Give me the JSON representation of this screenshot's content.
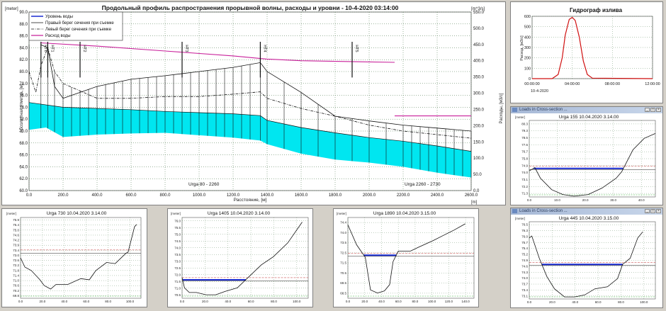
{
  "main": {
    "title": "Продольный профиль распространения прорывной волны, расходы и уровни  - 10-4-2020 03:14:00",
    "y_left_unit": "[meter]",
    "y_right_unit": "[m^3/s]",
    "y_left_label": "Абсолютная отметка, [м]",
    "y_right_label": "Расходы, [м3/с]",
    "x_label": "Расстояние, [м]",
    "x_unit": "[m]",
    "legend": [
      "Уровень воды",
      "Правый берег сечения при съемке",
      "Левый берег сечения при съемке",
      "Расход воды"
    ],
    "section_labels": [
      "Urga  80 - 2260",
      "Urga  2260 - 2730"
    ],
    "station_labels": [
      "HTL",
      "HT1",
      "HT2",
      "HT3",
      "HT4",
      "HT5"
    ]
  },
  "hydrograph": {
    "title": "Гидрограф излива",
    "ylabel": "Расход, [м3/с]",
    "date": "10-4-2020"
  },
  "sections": {
    "s155": {
      "window_title": "Loads in Cross-section ...",
      "title": "Urga 155  10.04.2020 3.14.00"
    },
    "s730": {
      "title": "Urga 730  10.04.2020 3.14.00"
    },
    "s1405": {
      "title": "Urga 1405  10.04.2020 3.14.00"
    },
    "s1890": {
      "title": "Urga 1890  10.04.2020 3.15.00"
    },
    "s445": {
      "window_title": "Loads in Cross-section ...",
      "title": "Urga 445  10.04.2020 3.15.00"
    },
    "meter_unit": "[meter]"
  },
  "colors": {
    "water": "#00e6f0",
    "level": "#1a2bd0",
    "flow": "#c8209a",
    "hydro": "#d01010"
  },
  "chart_data": [
    {
      "type": "line",
      "name": "longitudinal-profile",
      "xlim": [
        0,
        2600
      ],
      "ylim": [
        60,
        90
      ],
      "y2lim": [
        0,
        550
      ],
      "x_ticks": [
        0,
        200,
        400,
        600,
        800,
        1000,
        1200,
        1400,
        1600,
        1800,
        2000,
        2200,
        2400,
        2600
      ],
      "x_tick_labels": [
        "0.0",
        "200.0",
        "400.0",
        "600.0",
        "800.0",
        "1000.0",
        "1200.0",
        "1400.0",
        "1600.0",
        "1800.0",
        "2000.0",
        "2200.0",
        "2400.0",
        "2600.0"
      ],
      "y_ticks": [
        60,
        62,
        64,
        66,
        68,
        70,
        72,
        74,
        76,
        78,
        80,
        82,
        84,
        86,
        88,
        90
      ],
      "y_tick_labels": [
        "60.0",
        "62.0",
        "64.0",
        "66.0",
        "68.0",
        "70.0",
        "72.0",
        "74.0",
        "76.0",
        "78.0",
        "80.0",
        "82.0",
        "84.0",
        "86.0",
        "88.0",
        "90.0"
      ],
      "y2_ticks": [
        0,
        50,
        100,
        150,
        200,
        250,
        300,
        350,
        400,
        450,
        500,
        550
      ],
      "y2_tick_labels": [
        "0.0",
        "50.0",
        "100.0",
        "150.0",
        "200.0",
        "250.0",
        "300.0",
        "350.0",
        "400.0",
        "450.0",
        "500.0",
        "550.0"
      ],
      "water_top": [
        [
          0,
          74.8
        ],
        [
          200,
          74.0
        ],
        [
          400,
          73.8
        ],
        [
          600,
          73.6
        ],
        [
          800,
          73.3
        ],
        [
          1000,
          73.1
        ],
        [
          1200,
          72.9
        ],
        [
          1360,
          72.6
        ],
        [
          1400,
          71.8
        ],
        [
          1600,
          70.6
        ],
        [
          1800,
          69.7
        ],
        [
          2000,
          68.9
        ],
        [
          2200,
          68.3
        ],
        [
          2400,
          67.5
        ],
        [
          2600,
          66.6
        ]
      ],
      "bed": [
        [
          0,
          70.2
        ],
        [
          100,
          70.6
        ],
        [
          200,
          69.0
        ],
        [
          400,
          69.4
        ],
        [
          600,
          69.6
        ],
        [
          800,
          69.7
        ],
        [
          1000,
          69.3
        ],
        [
          1200,
          68.9
        ],
        [
          1360,
          68.4
        ],
        [
          1400,
          67.8
        ],
        [
          1600,
          66.2
        ],
        [
          1800,
          65.2
        ],
        [
          2000,
          64.7
        ],
        [
          2200,
          64.0
        ],
        [
          2400,
          63.0
        ],
        [
          2600,
          62.2
        ]
      ],
      "right_bank": [
        [
          70,
          84.5
        ],
        [
          110,
          84.0
        ],
        [
          150,
          77.5
        ],
        [
          200,
          75.5
        ],
        [
          400,
          77.5
        ],
        [
          600,
          78.7
        ],
        [
          800,
          79.3
        ],
        [
          1000,
          80.0
        ],
        [
          1200,
          80.7
        ],
        [
          1360,
          81.5
        ],
        [
          1400,
          80.0
        ],
        [
          1600,
          76.5
        ],
        [
          1800,
          72.5
        ],
        [
          2000,
          71.7
        ],
        [
          2200,
          71.0
        ],
        [
          2400,
          70.5
        ],
        [
          2600,
          70.0
        ]
      ],
      "left_bank": [
        [
          0,
          80.0
        ],
        [
          40,
          76.5
        ],
        [
          70,
          81.0
        ],
        [
          110,
          84.0
        ],
        [
          150,
          80.0
        ],
        [
          200,
          78.0
        ],
        [
          400,
          75.5
        ],
        [
          600,
          75.5
        ],
        [
          800,
          75.8
        ],
        [
          1000,
          75.8
        ],
        [
          1200,
          76.2
        ],
        [
          1360,
          76.6
        ],
        [
          1400,
          75.5
        ],
        [
          1600,
          73.8
        ],
        [
          1800,
          72.5
        ],
        [
          2000,
          71.0
        ],
        [
          2200,
          70.0
        ],
        [
          2400,
          69.4
        ],
        [
          2600,
          68.8
        ]
      ],
      "flow_y2": [
        [
          70,
          455
        ],
        [
          400,
          445
        ],
        [
          800,
          430
        ],
        [
          1200,
          415
        ],
        [
          1400,
          405
        ],
        [
          1600,
          400
        ],
        [
          2150,
          395
        ]
      ],
      "flow_y2_tail": [
        [
          2150,
          230
        ],
        [
          2600,
          230
        ]
      ],
      "verticals_x": [
        0,
        70,
        110,
        150,
        200,
        250,
        300,
        350,
        400,
        450,
        500,
        550,
        600,
        650,
        700,
        750,
        800,
        850,
        900,
        950,
        1000,
        1050,
        1100,
        1150,
        1200,
        1250,
        1300,
        1360,
        1400,
        1500,
        1600,
        1700,
        1800,
        1900,
        2000,
        2100,
        2200,
        2250,
        2300,
        2350,
        2400,
        2450,
        2500,
        2550,
        2600
      ]
    },
    {
      "type": "line",
      "name": "hydrograph",
      "x_tick_labels": [
        "00:00:00",
        "04:00:00",
        "08:00:00",
        "12:00:00"
      ],
      "y_tick_labels": [
        "0",
        "100",
        "200",
        "300",
        "400",
        "500",
        "600"
      ],
      "ylim": [
        0,
        600
      ],
      "xlim": [
        0,
        12
      ],
      "points": [
        [
          0,
          0
        ],
        [
          2,
          0
        ],
        [
          2.6,
          40
        ],
        [
          3.0,
          200
        ],
        [
          3.3,
          420
        ],
        [
          3.7,
          570
        ],
        [
          4.0,
          590
        ],
        [
          4.3,
          560
        ],
        [
          4.7,
          400
        ],
        [
          5.1,
          170
        ],
        [
          5.5,
          40
        ],
        [
          6.0,
          5
        ],
        [
          12,
          0
        ]
      ]
    },
    {
      "type": "line",
      "name": "section-155",
      "ylim": [
        71.2,
        80.6
      ],
      "y_tick_labels": [
        "80.3",
        "79.3",
        "78.5",
        "77.6",
        "76.7",
        "75.8",
        "74.9",
        "74.0",
        "73.1",
        "72.2",
        "71.3"
      ],
      "x_tick_labels": [
        "0.0",
        "10.0",
        "20.0",
        "30.0",
        "40.0"
      ],
      "xlim": [
        0,
        45
      ],
      "profile": [
        [
          0,
          74.4
        ],
        [
          2,
          74.8
        ],
        [
          4,
          73.5
        ],
        [
          8,
          72.1
        ],
        [
          12,
          71.5
        ],
        [
          16,
          71.3
        ],
        [
          21,
          71.5
        ],
        [
          26,
          72.3
        ],
        [
          31,
          73.5
        ],
        [
          33,
          74.3
        ],
        [
          37,
          77.0
        ],
        [
          41,
          78.4
        ],
        [
          45,
          79.0
        ]
      ],
      "level": 74.7
    },
    {
      "type": "line",
      "name": "section-730",
      "ylim": [
        69.6,
        76.6
      ],
      "y_tick_labels": [
        "75.9",
        "75.4",
        "75.0",
        "74.6",
        "74.2",
        "73.9",
        "73.4",
        "73.0",
        "72.6",
        "72.2",
        "71.8",
        "71.4",
        "71.0",
        "70.6",
        "70.2",
        "69.8"
      ],
      "x_tick_labels": [
        "0.0",
        "20.0",
        "40.0",
        "60.0",
        "80.0",
        "100.0"
      ],
      "xlim": [
        0,
        112
      ],
      "profile": [
        [
          0,
          73.1
        ],
        [
          4,
          72.3
        ],
        [
          10,
          72.0
        ],
        [
          18,
          71.2
        ],
        [
          22,
          70.7
        ],
        [
          28,
          70.4
        ],
        [
          33,
          70.8
        ],
        [
          44,
          70.8
        ],
        [
          56,
          71.3
        ],
        [
          64,
          71.2
        ],
        [
          70,
          72.0
        ],
        [
          80,
          72.7
        ],
        [
          88,
          72.6
        ],
        [
          98,
          73.5
        ],
        [
          100,
          73.6
        ],
        [
          106,
          75.8
        ],
        [
          108,
          76.0
        ]
      ],
      "level": 73.6
    },
    {
      "type": "line",
      "name": "section-1405",
      "ylim": [
        70.4,
        77.4
      ],
      "y_tick_labels": [
        "76.0",
        "75.5",
        "75.0",
        "74.5",
        "74.0",
        "73.5",
        "73.0",
        "72.5",
        "72.0",
        "71.5",
        "71.0",
        "70.5"
      ],
      "x_tick_labels": [
        "0.0",
        "20.0",
        "40.0",
        "60.0",
        "80.0",
        "100.0"
      ],
      "xlim": [
        0,
        105
      ],
      "profile": [
        [
          0,
          72.2
        ],
        [
          2,
          71.3
        ],
        [
          6,
          70.9
        ],
        [
          12,
          70.9
        ],
        [
          20,
          70.7
        ],
        [
          28,
          70.7
        ],
        [
          36,
          71.0
        ],
        [
          46,
          71.3
        ],
        [
          56,
          72.3
        ],
        [
          66,
          73.3
        ],
        [
          76,
          74.0
        ],
        [
          88,
          75.2
        ],
        [
          100,
          77.0
        ]
      ],
      "level": 72.0
    },
    {
      "type": "line",
      "name": "section-1890",
      "ylim": [
        67.5,
        75.2
      ],
      "y_tick_labels": [
        "74.4",
        "74.0",
        "73.5",
        "72.5",
        "71.5",
        "70.5",
        "69.5",
        "68.5"
      ],
      "x_tick_labels": [
        "0.0",
        "20.0",
        "40.0",
        "60.0",
        "80.0",
        "100.0",
        "120.0",
        "140.0"
      ],
      "xlim": [
        0,
        145
      ],
      "profile": [
        [
          0,
          74.5
        ],
        [
          10,
          72.6
        ],
        [
          20,
          71.4
        ],
        [
          26,
          68.3
        ],
        [
          34,
          68.0
        ],
        [
          42,
          68.2
        ],
        [
          48,
          68.8
        ],
        [
          52,
          71.0
        ],
        [
          58,
          72.0
        ],
        [
          72,
          72.0
        ],
        [
          82,
          72.4
        ],
        [
          98,
          73.0
        ],
        [
          110,
          73.5
        ],
        [
          122,
          74.0
        ],
        [
          135,
          74.6
        ]
      ],
      "level": 71.6
    },
    {
      "type": "line",
      "name": "section-445",
      "ylim": [
        72.9,
        76.7
      ],
      "y_tick_labels": [
        "76.5",
        "76.3",
        "76.0",
        "75.7",
        "75.4",
        "75.2",
        "74.9",
        "74.6",
        "74.3",
        "74.0",
        "73.7",
        "73.4",
        "73.1"
      ],
      "x_tick_labels": [
        "0.0",
        "20.0",
        "40.0",
        "60.0",
        "80.0",
        "100.0"
      ],
      "xlim": [
        0,
        100
      ],
      "profile": [
        [
          0,
          75.9
        ],
        [
          2,
          76.0
        ],
        [
          8,
          74.9
        ],
        [
          14,
          74.0
        ],
        [
          20,
          73.4
        ],
        [
          28,
          73.0
        ],
        [
          36,
          73.0
        ],
        [
          44,
          73.1
        ],
        [
          52,
          73.4
        ],
        [
          62,
          73.5
        ],
        [
          70,
          73.9
        ],
        [
          74,
          74.6
        ],
        [
          80,
          74.9
        ],
        [
          86,
          75.9
        ],
        [
          90,
          76.2
        ]
      ],
      "level": 74.6
    }
  ]
}
